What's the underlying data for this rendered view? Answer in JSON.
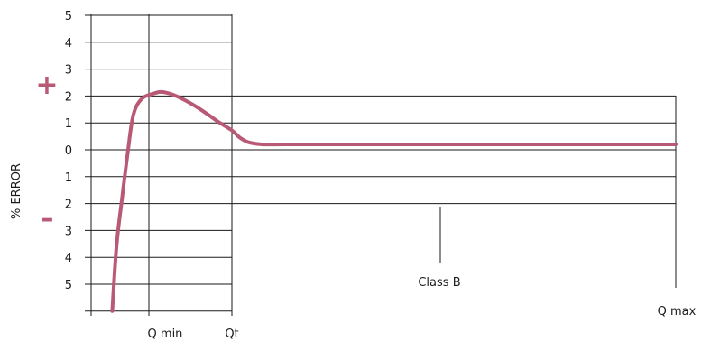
{
  "chart_data": {
    "type": "line",
    "title": "",
    "xlabel": "",
    "ylabel": "% ERROR",
    "y_tick_labels_top_to_bottom": [
      "5",
      "4",
      "3",
      "2",
      "1",
      "0",
      "1",
      "2",
      "3",
      "4",
      "5"
    ],
    "ylim": [
      -6,
      5
    ],
    "sign_plus": "+",
    "sign_minus": "–",
    "x_markers": [
      {
        "label": "Q min"
      },
      {
        "label": "Qt"
      },
      {
        "label": "Q max"
      }
    ],
    "annotation": "Class B",
    "limit_envelope": {
      "name": "Class B",
      "low_flow_limit": 5,
      "high_flow_limit": 2
    },
    "series": [
      {
        "color": "#b85a76",
        "points": [
          [
            0.15,
            -6.0
          ],
          [
            0.18,
            -3.6
          ],
          [
            0.22,
            -1.8
          ],
          [
            0.26,
            -0.1
          ],
          [
            0.3,
            1.3
          ],
          [
            0.36,
            1.9
          ],
          [
            0.45,
            2.1
          ],
          [
            0.5,
            2.15
          ],
          [
            0.58,
            2.05
          ],
          [
            0.7,
            1.75
          ],
          [
            0.82,
            1.35
          ],
          [
            0.9,
            1.05
          ],
          [
            1.0,
            0.72
          ],
          [
            1.12,
            0.45
          ],
          [
            1.25,
            0.28
          ],
          [
            1.45,
            0.2
          ],
          [
            1.8,
            0.2
          ],
          [
            2.5,
            0.2
          ],
          [
            3.5,
            0.2
          ],
          [
            5.0,
            0.2
          ],
          [
            7.6,
            0.2
          ]
        ]
      }
    ],
    "grid": true,
    "colors": {
      "curve": "#b85a76",
      "sign": "#b85a76",
      "grid": "#1a1a1a"
    }
  }
}
